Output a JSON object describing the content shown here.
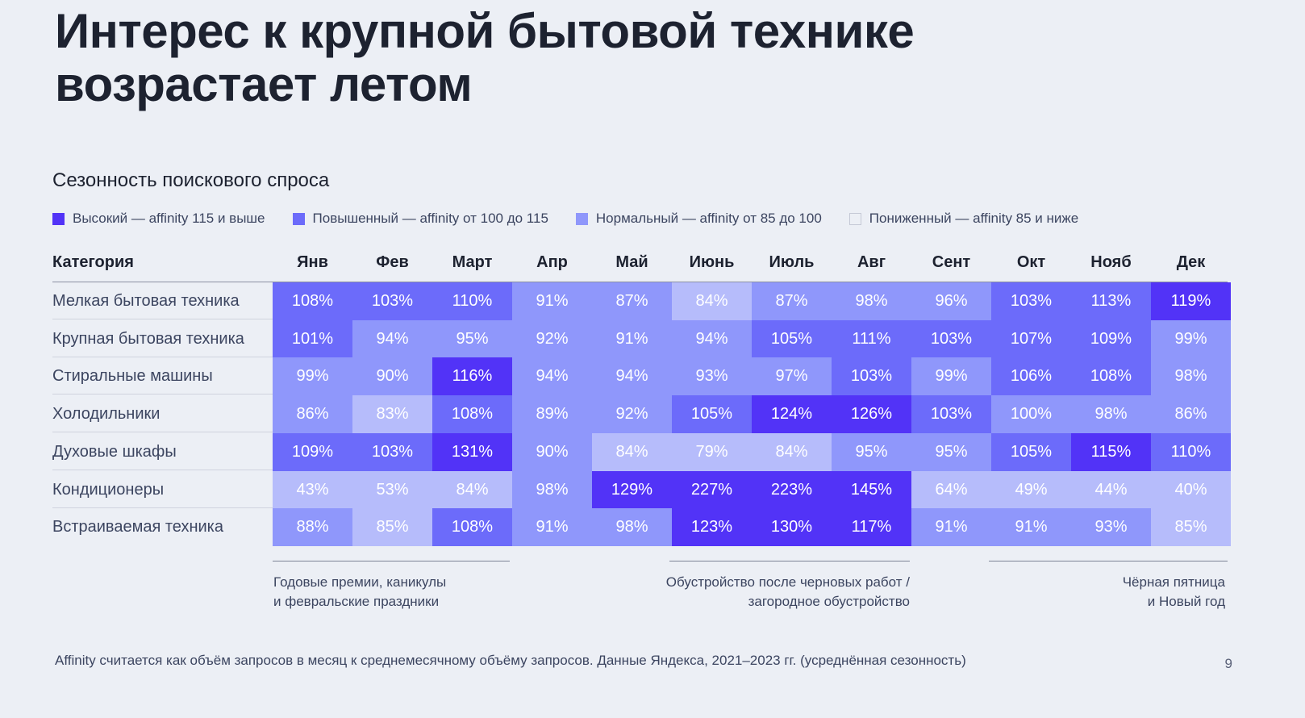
{
  "title": "Интерес к крупной бытовой технике возрастает летом",
  "subtitle": "Сезонность поискового спроса",
  "legend": [
    {
      "label": "Высокий — affinity 115 и выше",
      "color": "#5233f7"
    },
    {
      "label": "Повышенный — affinity от 100 до 115",
      "color": "#6c6bfa"
    },
    {
      "label": "Нормальный — affinity от 85 до 100",
      "color": "#8f97fb"
    },
    {
      "label": "Пониженный — affinity 85 и ниже",
      "color": "#b6bcfb"
    }
  ],
  "table": {
    "category_header": "Категория"
  },
  "chart_data": {
    "type": "heatmap",
    "title": "Сезонность поискового спроса",
    "x": [
      "Янв",
      "Фев",
      "Март",
      "Апр",
      "Май",
      "Июнь",
      "Июль",
      "Авг",
      "Сент",
      "Окт",
      "Нояб",
      "Дек"
    ],
    "y": [
      "Мелкая бытовая техника",
      "Крупная бытовая техника",
      "Стиральные машины",
      "Холодильники",
      "Духовые шкафы",
      "Кондиционеры",
      "Встраиваемая техника"
    ],
    "unit": "%",
    "values": [
      [
        108,
        103,
        110,
        91,
        87,
        84,
        87,
        98,
        96,
        103,
        113,
        119
      ],
      [
        101,
        94,
        95,
        92,
        91,
        94,
        105,
        111,
        103,
        107,
        109,
        99
      ],
      [
        99,
        90,
        116,
        94,
        94,
        93,
        97,
        103,
        99,
        106,
        108,
        98
      ],
      [
        86,
        83,
        108,
        89,
        92,
        105,
        124,
        126,
        103,
        100,
        98,
        86
      ],
      [
        109,
        103,
        131,
        90,
        84,
        79,
        84,
        95,
        95,
        105,
        115,
        110
      ],
      [
        43,
        53,
        84,
        98,
        129,
        227,
        223,
        145,
        64,
        49,
        44,
        40
      ],
      [
        88,
        85,
        108,
        91,
        98,
        123,
        130,
        117,
        91,
        91,
        93,
        85
      ]
    ],
    "thresholds": {
      "high": 115,
      "elevated": 100,
      "normal": 85
    },
    "colors": {
      "high": "#5233f7",
      "elevated": "#6c6bfa",
      "normal": "#8f97fb",
      "low": "#b6bcfb"
    }
  },
  "annotations": [
    {
      "line1": "Годовые премии, каникулы",
      "line2": "и февральские праздники"
    },
    {
      "line1": "Обустройство после черновых работ /",
      "line2": "загородное обустройство"
    },
    {
      "line1": "Чёрная пятница",
      "line2": "и Новый год"
    }
  ],
  "footnote": "Affinity считается как объём запросов в месяц к среднемесячному объёму запросов. Данные Яндекса, 2021–2023 гг. (усреднённая сезонность)",
  "page_number": "9"
}
